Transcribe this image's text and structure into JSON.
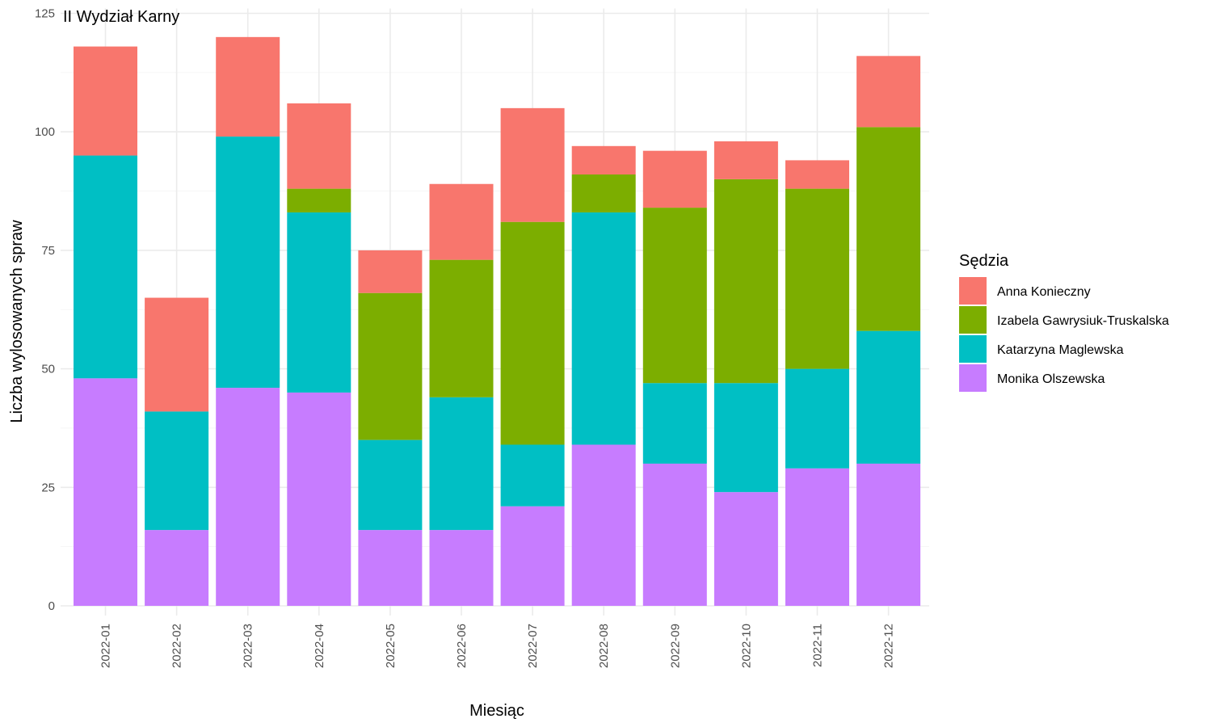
{
  "chart_data": {
    "type": "bar",
    "stacked": true,
    "title": "II Wydział Karny",
    "xlabel": "Miesiąc",
    "ylabel": "Liczba wylosowanych spraw",
    "ylim": [
      0,
      125
    ],
    "yticks": [
      0,
      25,
      50,
      75,
      100,
      125
    ],
    "grid": true,
    "legend_position": "right",
    "legend_title": "Sędzia",
    "categories": [
      "2022-01",
      "2022-02",
      "2022-03",
      "2022-04",
      "2022-05",
      "2022-06",
      "2022-07",
      "2022-08",
      "2022-09",
      "2022-10",
      "2022-11",
      "2022-12"
    ],
    "series": [
      {
        "name": "Monika Olszewska",
        "color": "#C77CFF",
        "values": [
          48,
          16,
          46,
          45,
          16,
          16,
          21,
          34,
          30,
          24,
          29,
          30
        ]
      },
      {
        "name": "Katarzyna Maglewska",
        "color": "#00BFC4",
        "values": [
          47,
          25,
          53,
          38,
          19,
          28,
          13,
          49,
          17,
          23,
          21,
          28
        ]
      },
      {
        "name": "Izabela Gawrysiuk-Truskalska",
        "color": "#7CAE00",
        "values": [
          0,
          0,
          0,
          5,
          31,
          29,
          47,
          8,
          37,
          43,
          38,
          43
        ]
      },
      {
        "name": "Anna Konieczny",
        "color": "#F8766D",
        "values": [
          23,
          24,
          21,
          18,
          9,
          16,
          24,
          6,
          12,
          8,
          6,
          15
        ]
      }
    ],
    "legend_order": [
      "Anna Konieczny",
      "Izabela Gawrysiuk-Truskalska",
      "Katarzyna Maglewska",
      "Monika Olszewska"
    ]
  }
}
